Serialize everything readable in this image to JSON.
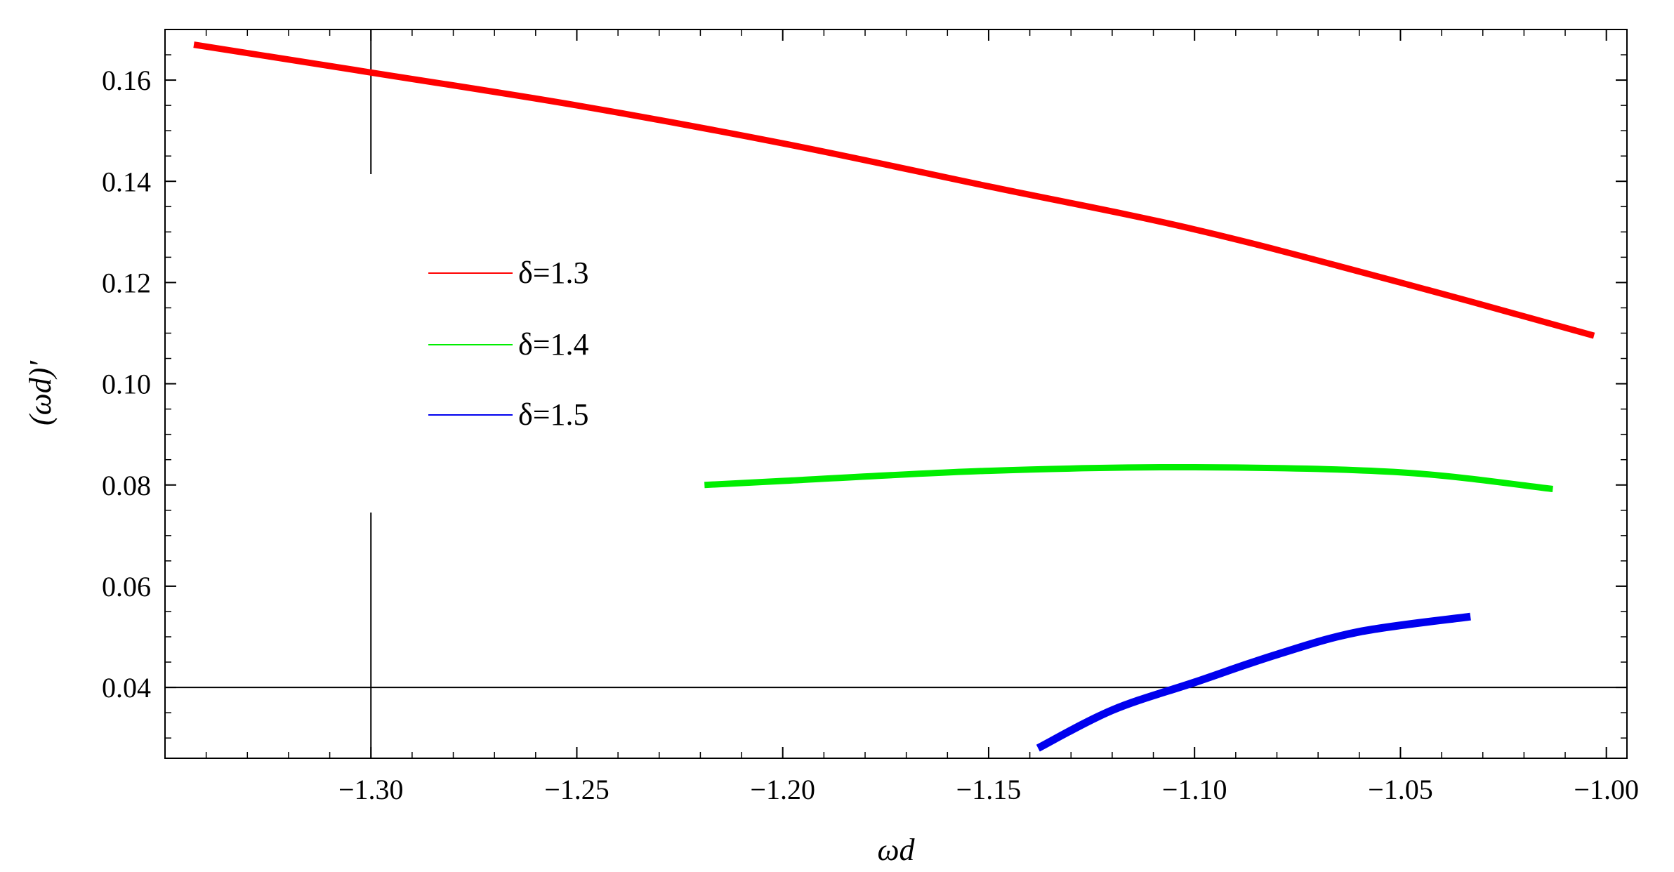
{
  "chart_data": {
    "type": "line",
    "xlabel": "ωd",
    "ylabel": "(ωd)′",
    "xlim": [
      -1.35,
      -0.995
    ],
    "ylim": [
      0.026,
      0.17
    ],
    "x_ticks": [
      -1.3,
      -1.25,
      -1.2,
      -1.15,
      -1.1,
      -1.05,
      -1.0
    ],
    "y_ticks": [
      0.04,
      0.06,
      0.08,
      0.1,
      0.12,
      0.14,
      0.16
    ],
    "x_tick_labels": [
      "−1.30",
      "−1.25",
      "−1.20",
      "−1.15",
      "−1.10",
      "−1.05",
      "−1.00"
    ],
    "y_tick_labels": [
      "0.04",
      "0.06",
      "0.08",
      "0.10",
      "0.12",
      "0.14",
      "0.16"
    ],
    "grid": false,
    "legend_position": "upper-left",
    "reference_lines": {
      "vertical_x": -1.3,
      "horizontal_y": 0.04
    },
    "series": [
      {
        "name": "δ=1.3",
        "color": "#ff0000",
        "x": [
          -1.343,
          -1.3,
          -1.25,
          -1.2,
          -1.15,
          -1.1,
          -1.05,
          -1.003
        ],
        "y": [
          0.167,
          0.1615,
          0.155,
          0.1475,
          0.139,
          0.1305,
          0.12,
          0.1095
        ]
      },
      {
        "name": "δ=1.4",
        "color": "#00ee00",
        "x": [
          -1.219,
          -1.2,
          -1.15,
          -1.1,
          -1.05,
          -1.013
        ],
        "y": [
          0.08,
          0.0808,
          0.0828,
          0.0835,
          0.0825,
          0.0792
        ]
      },
      {
        "name": "δ=1.5",
        "color": "#0000ee",
        "x": [
          -1.138,
          -1.12,
          -1.1,
          -1.08,
          -1.06,
          -1.033
        ],
        "y": [
          0.028,
          0.0355,
          0.041,
          0.0465,
          0.051,
          0.054
        ]
      }
    ]
  }
}
